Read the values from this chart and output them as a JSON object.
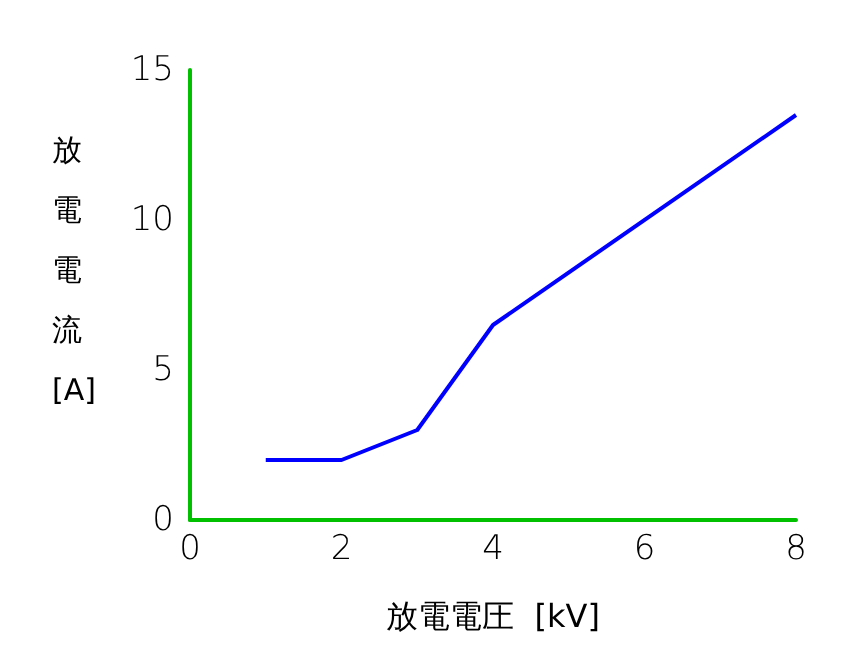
{
  "chart_data": {
    "type": "line",
    "xlabel": "放電電圧  [kV]",
    "ylabel": "放電電流 [A]",
    "x": [
      1,
      2,
      3,
      4,
      8
    ],
    "series": [
      {
        "color": "#0000ff",
        "values": [
          2,
          2,
          3,
          6.5,
          13.5
        ]
      }
    ],
    "xlim": [
      0,
      8
    ],
    "xticks": [
      0,
      2,
      4,
      6,
      8
    ],
    "ylim": [
      0,
      15
    ],
    "yticks": [
      0,
      5,
      10,
      15
    ],
    "grid": false,
    "marker": "none",
    "line_style": "solid"
  }
}
